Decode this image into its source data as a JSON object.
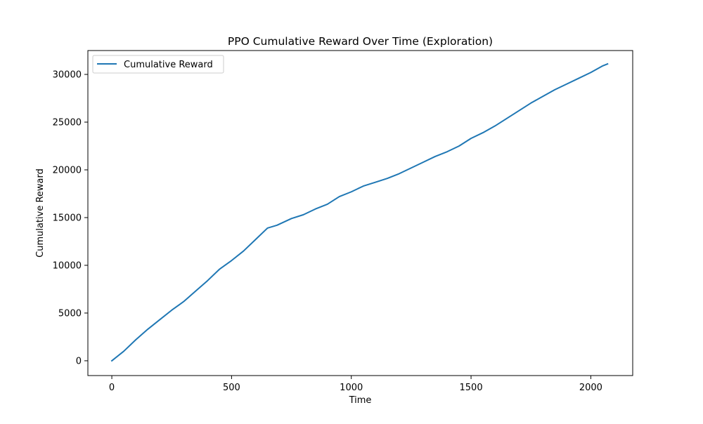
{
  "chart_data": {
    "type": "line",
    "title": "PPO Cumulative Reward Over Time (Exploration)",
    "xlabel": "Time",
    "ylabel": "Cumulative Reward",
    "xlim": [
      -100,
      2175
    ],
    "ylim": [
      -1550,
      32500
    ],
    "xticks": [
      0,
      500,
      1000,
      1500,
      2000
    ],
    "yticks": [
      0,
      5000,
      10000,
      15000,
      20000,
      25000,
      30000
    ],
    "xtick_labels": [
      "0",
      "500",
      "1000",
      "1500",
      "2000"
    ],
    "ytick_labels": [
      "0",
      "5000",
      "10000",
      "15000",
      "20000",
      "25000",
      "30000"
    ],
    "grid": false,
    "legend_position": "upper-left",
    "series": [
      {
        "name": "Cumulative Reward",
        "color": "#1f77b4",
        "x": [
          0,
          50,
          100,
          150,
          200,
          250,
          300,
          350,
          400,
          450,
          500,
          550,
          600,
          650,
          690,
          750,
          800,
          850,
          900,
          950,
          1000,
          1050,
          1100,
          1150,
          1200,
          1250,
          1300,
          1350,
          1400,
          1450,
          1500,
          1550,
          1600,
          1650,
          1700,
          1750,
          1800,
          1850,
          1900,
          1950,
          2000,
          2050,
          2070
        ],
        "values": [
          0,
          1000,
          2200,
          3300,
          4300,
          5300,
          6200,
          7300,
          8400,
          9600,
          10500,
          11500,
          12700,
          13900,
          14200,
          14900,
          15300,
          15900,
          16400,
          17200,
          17700,
          18300,
          18700,
          19100,
          19600,
          20200,
          20800,
          21400,
          21900,
          22500,
          23300,
          23900,
          24600,
          25400,
          26200,
          27000,
          27700,
          28400,
          29000,
          29600,
          30200,
          30900,
          31100
        ]
      }
    ]
  }
}
